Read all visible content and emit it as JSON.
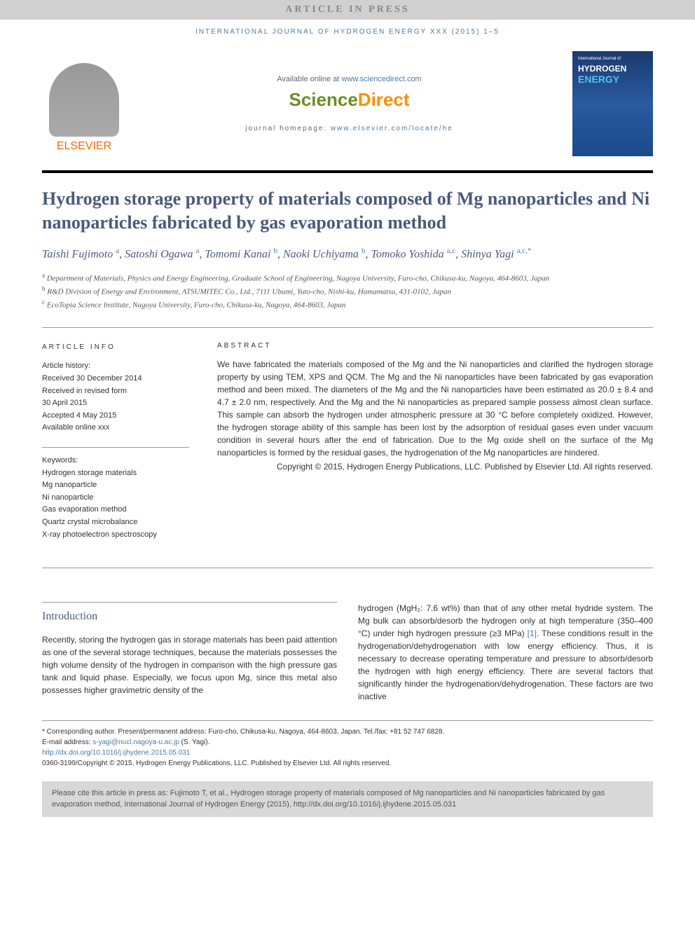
{
  "banner": "ARTICLE IN PRESS",
  "journalRef": "INTERNATIONAL JOURNAL OF HYDROGEN ENERGY XXX (2015) 1–5",
  "header": {
    "elsevierLabel": "ELSEVIER",
    "availableText": "Available online at ",
    "sdUrl": "www.sciencedirect.com",
    "sdScience": "Science",
    "sdDirect": "Direct",
    "homepageLabel": "journal homepage: ",
    "homepageUrl": "www.elsevier.com/locate/he",
    "coverJournal": "International Journal of",
    "coverTitle1": "HYDROGEN",
    "coverTitle2": "ENERGY"
  },
  "title": "Hydrogen storage property of materials composed of Mg nanoparticles and Ni nanoparticles fabricated by gas evaporation method",
  "authors": [
    {
      "name": "Taishi Fujimoto",
      "sup": "a"
    },
    {
      "name": "Satoshi Ogawa",
      "sup": "a"
    },
    {
      "name": "Tomomi Kanai",
      "sup": "b"
    },
    {
      "name": "Naoki Uchiyama",
      "sup": "b"
    },
    {
      "name": "Tomoko Yoshida",
      "sup": "a,c"
    },
    {
      "name": "Shinya Yagi",
      "sup": "a,c,*"
    }
  ],
  "affiliations": [
    {
      "sup": "a",
      "text": "Department of Materials, Physics and Energy Engineering, Graduate School of Engineering, Nagoya University, Furo-cho, Chikusa-ku, Nagoya, 464-8603, Japan"
    },
    {
      "sup": "b",
      "text": "R&D Division of Energy and Environment, ATSUMITEC Co., Ltd., 7111 Ubumi, Yuto-cho, Nishi-ku, Hamamatsu, 431-0102, Japan"
    },
    {
      "sup": "c",
      "text": "EcoTopia Science Institute, Nagoya University, Furo-cho, Chikusa-ku, Nagoya, 464-8603, Japan"
    }
  ],
  "articleInfo": {
    "heading": "ARTICLE INFO",
    "historyLabel": "Article history:",
    "history": [
      "Received 30 December 2014",
      "Received in revised form",
      "30 April 2015",
      "Accepted 4 May 2015",
      "Available online xxx"
    ],
    "keywordsLabel": "Keywords:",
    "keywords": [
      "Hydrogen storage materials",
      "Mg nanoparticle",
      "Ni nanoparticle",
      "Gas evaporation method",
      "Quartz crystal microbalance",
      "X-ray photoelectron spectroscopy"
    ]
  },
  "abstract": {
    "heading": "ABSTRACT",
    "text": "We have fabricated the materials composed of the Mg and the Ni nanoparticles and clarified the hydrogen storage property by using TEM, XPS and QCM. The Mg and the Ni nanoparticles have been fabricated by gas evaporation method and been mixed. The diameters of the Mg and the Ni nanoparticles have been estimated as 20.0 ± 8.4 and 4.7 ± 2.0 nm, respectively. And the Mg and the Ni nanoparticles as prepared sample possess almost clean surface. This sample can absorb the hydrogen under atmospheric pressure at 30 °C before completely oxidized. However, the hydrogen storage ability of this sample has been lost by the adsorption of residual gases even under vacuum condition in several hours after the end of fabrication. Due to the Mg oxide shell on the surface of the Mg nanoparticles is formed by the residual gases, the hydrogenation of the Mg nanoparticles are hindered.",
    "copyright": "Copyright © 2015, Hydrogen Energy Publications, LLC. Published by Elsevier Ltd. All rights reserved."
  },
  "intro": {
    "heading": "Introduction",
    "col1": "Recently, storing the hydrogen gas in storage materials has been paid attention as one of the several storage techniques, because the materials possesses the high volume density of the hydrogen in comparison with the high pressure gas tank and liquid phase. Especially, we focus upon Mg, since this metal also possesses higher gravimetric density of the",
    "col2a": "hydrogen (MgH₂: 7.6 wt%) than that of any other metal hydride system. The Mg bulk can absorb/desorb the hydrogen only at high temperature (350–400 °C) under high hydrogen pressure (≥3 MPa) ",
    "col2ref": "[1]",
    "col2b": ". These conditions result in the hydrogenation/dehydrogenation with low energy efficiency. Thus, it is necessary to decrease operating temperature and pressure to absorb/desorb the hydrogen with high energy efficiency. There are several factors that significantly hinder the hydrogenation/dehydrogenation. These factors are two inactive"
  },
  "footer": {
    "corr": "* Corresponding author. Present/permanent address: Furo-cho, Chikusa-ku, Nagoya, 464-8603, Japan. Tel./fax: +81 52 747 6828.",
    "emailLabel": "E-mail address: ",
    "email": "s-yagi@nucl.nagoya-u.ac.jp",
    "emailSuffix": " (S. Yagi).",
    "doi": "http://dx.doi.org/10.1016/j.ijhydene.2015.05.031",
    "issn": "0360-3199/Copyright © 2015, Hydrogen Energy Publications, LLC. Published by Elsevier Ltd. All rights reserved."
  },
  "citeBox": "Please cite this article in press as: Fujimoto T, et al., Hydrogen storage property of materials composed of Mg nanoparticles and Ni nanoparticles fabricated by gas evaporation method, International Journal of Hydrogen Energy (2015), http://dx.doi.org/10.1016/j.ijhydene.2015.05.031"
}
